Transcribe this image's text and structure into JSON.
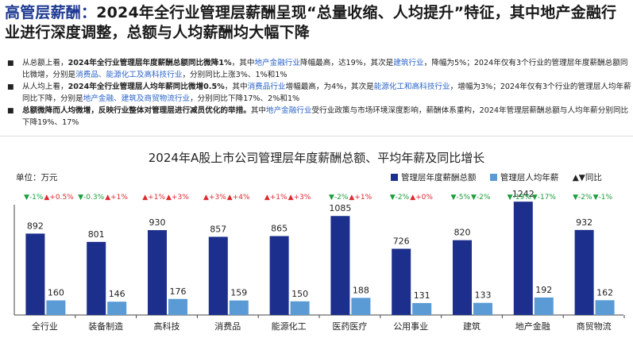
{
  "title": {
    "highlight": "高管层薪酬：",
    "text": "2024年全行业管理层薪酬呈现“总量收缩、人均提升”特征，其中地产金融行业进行深度调整，总额与人均薪酬均大幅下降"
  },
  "bullets": [
    {
      "segments": [
        {
          "t": "从总额上看，",
          "s": "n"
        },
        {
          "t": "2024年全行业管理层年度薪酬总额同比微降1%",
          "s": "b"
        },
        {
          "t": "，其中",
          "s": "n"
        },
        {
          "t": "地产金融行业",
          "s": "u"
        },
        {
          "t": "降幅最高，达19%，其次是",
          "s": "n"
        },
        {
          "t": "建筑行业",
          "s": "u"
        },
        {
          "t": "，降幅为5%；2024年仅有3个行业的管理层年度薪酬总额同比微增，分别是",
          "s": "n"
        },
        {
          "t": "消费品、能源化工及高科技行业",
          "s": "u"
        },
        {
          "t": "，分别同比上涨3%、1%和1%",
          "s": "n"
        }
      ]
    },
    {
      "segments": [
        {
          "t": "从人均上看，",
          "s": "n"
        },
        {
          "t": "2024年全行业管理层人均年薪同比微增0.5%",
          "s": "b"
        },
        {
          "t": "，其中",
          "s": "n"
        },
        {
          "t": "消费品行业",
          "s": "u"
        },
        {
          "t": "增幅最高，为4%，其次是",
          "s": "n"
        },
        {
          "t": "能源化工和高科技行业",
          "s": "u"
        },
        {
          "t": "，增幅为3%；2024年仅有3个行业的管理层人均年薪同比下降，分别是",
          "s": "n"
        },
        {
          "t": "地产金融、建筑及商贸物流行业",
          "s": "u"
        },
        {
          "t": "，分别同比下降17%、2%和1%",
          "s": "n"
        }
      ]
    },
    {
      "segments": [
        {
          "t": "总额微降而人均微增，反映行业整体对管理层进行减员优化的举措。",
          "s": "b"
        },
        {
          "t": "其中",
          "s": "n"
        },
        {
          "t": "地产金融行业",
          "s": "u"
        },
        {
          "t": "受行业政策与市场环境深度影响，薪酬体系重构，2024年管理层薪酬总额与人均年薪分别同比下降19%、17%",
          "s": "n"
        }
      ]
    }
  ],
  "chart_data": {
    "type": "bar",
    "title": "2024年A股上市公司管理层年度薪酬总额、平均年薪及同比增长",
    "unit_label": "单位：万元",
    "categories": [
      "全行业",
      "装备制造",
      "高科技",
      "消费品",
      "能源化工",
      "医药医疗",
      "公用事业",
      "建筑",
      "地产金融",
      "商贸物流"
    ],
    "series": [
      {
        "name": "管理层年度薪酬总额",
        "color": "#1c2f8c",
        "values": [
          892,
          801,
          930,
          857,
          865,
          1085,
          726,
          820,
          1242,
          932
        ]
      },
      {
        "name": "管理层人均年薪",
        "color": "#5b9bd5",
        "values": [
          160,
          146,
          176,
          159,
          150,
          188,
          131,
          133,
          192,
          162
        ]
      }
    ],
    "growth_legend": "▲▼同比",
    "growth": [
      {
        "total": "▼-1%",
        "avg": "▲+0.5%"
      },
      {
        "total": "▼-0.3%",
        "avg": "▲+1%"
      },
      {
        "total": "▲+1%",
        "avg": "▲+3%"
      },
      {
        "total": "▲+3%",
        "avg": "▲+4%"
      },
      {
        "total": "▲+1%",
        "avg": "▲+3%"
      },
      {
        "total": "▼-2%",
        "avg": "▲+1%"
      },
      {
        "total": "▼-2%",
        "avg": "▲+0%"
      },
      {
        "total": "▼-5%",
        "avg": "▼-2%"
      },
      {
        "total": "▼-19%",
        "avg": "▼-17%"
      },
      {
        "total": "▼-2%",
        "avg": "▼-1%"
      }
    ],
    "up_color": "#e0282f",
    "down_color": "#1a9c3a",
    "ylim": [
      0,
      1400
    ],
    "grid": false,
    "legend_position": "top-right"
  }
}
